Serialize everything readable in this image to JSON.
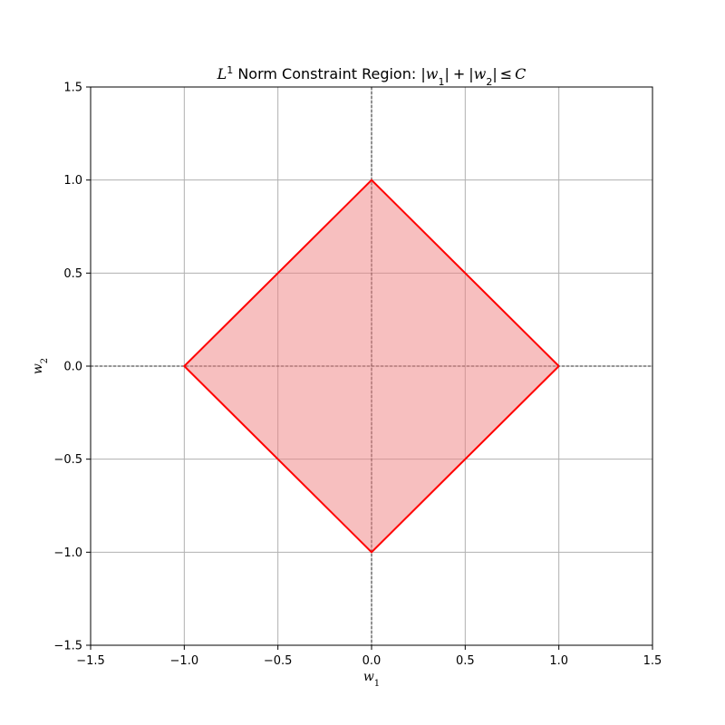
{
  "chart_data": {
    "type": "area",
    "title": {
      "prefix_var": "L",
      "prefix_sup": "1",
      "text": " Norm Constraint Region: ",
      "formula": {
        "bar": "|",
        "var": "w",
        "sub1": "1",
        "sub2": "2",
        "plus": "+",
        "leq": "≤",
        "const": "C"
      }
    },
    "xlabel": {
      "var": "w",
      "sub": "1"
    },
    "ylabel": {
      "var": "w",
      "sub": "2"
    },
    "xlim": [
      -1.5,
      1.5
    ],
    "ylim": [
      -1.5,
      1.5
    ],
    "xticks": [
      -1.5,
      -1.0,
      -0.5,
      0.0,
      0.5,
      1.0,
      1.5
    ],
    "yticks": [
      -1.5,
      -1.0,
      -0.5,
      0.0,
      0.5,
      1.0,
      1.5
    ],
    "xtick_labels": [
      "−1.5",
      "−1.0",
      "−0.5",
      "0.0",
      "0.5",
      "1.0",
      "1.5"
    ],
    "ytick_labels": [
      "−1.5",
      "−1.0",
      "−0.5",
      "0.0",
      "0.5",
      "1.0",
      "1.5"
    ],
    "grid": true,
    "zero_lines": true,
    "series": [
      {
        "x": [
          1,
          0,
          -1,
          0,
          1
        ],
        "y": [
          0,
          1,
          0,
          -1,
          0
        ],
        "line_color": "#ff0000",
        "fill_color": "#f08080",
        "fill_opacity": 0.5
      }
    ],
    "colors": {
      "grid": "#b0b0b0",
      "zero_line": "#000000",
      "axes": "#000000"
    }
  }
}
